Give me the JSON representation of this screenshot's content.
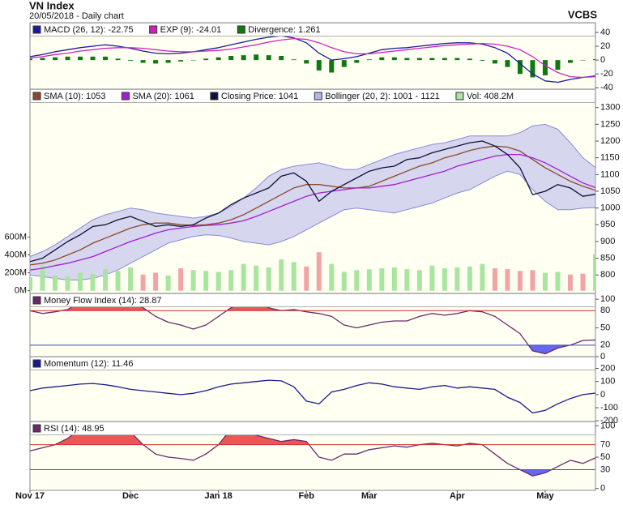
{
  "header": {
    "title": "VN Index",
    "subtitle": "20/05/2018 - Daily chart",
    "source": "VCBS"
  },
  "chart_data": [
    {
      "type": "line",
      "ylim": [
        -42,
        54
      ],
      "yticks": [
        40,
        20,
        0,
        -20,
        -40
      ],
      "series": [
        {
          "name": "MACD (26, 12): -22.75",
          "type": "line",
          "color": "#1a1aa0",
          "values": [
            5,
            8,
            12,
            15,
            18,
            20,
            22,
            20,
            17,
            13,
            10,
            9,
            10,
            12,
            15,
            18,
            22,
            26,
            30,
            33,
            35,
            32,
            25,
            10,
            0,
            2,
            5,
            10,
            15,
            17,
            18,
            20,
            22,
            24,
            25,
            25,
            23,
            18,
            10,
            -5,
            -20,
            -30,
            -32,
            -28,
            -25,
            -22.75
          ]
        },
        {
          "name": "EXP (9): -24.01",
          "type": "line",
          "color": "#d020c0",
          "values": [
            3,
            5,
            8,
            10,
            13,
            15,
            17,
            18,
            18,
            17,
            15,
            13,
            12,
            12,
            13,
            14,
            16,
            19,
            22,
            26,
            29,
            31,
            30,
            25,
            18,
            12,
            9,
            9,
            11,
            13,
            15,
            17,
            19,
            21,
            22,
            23,
            24,
            23,
            20,
            15,
            5,
            -8,
            -18,
            -24,
            -25,
            -24.01
          ]
        },
        {
          "name": "Divergence: 1.261",
          "type": "bar",
          "color": "#117711",
          "values": [
            2,
            3,
            4,
            5,
            5,
            5,
            5,
            2,
            -1,
            -4,
            -5,
            -4,
            -2,
            0,
            2,
            4,
            6,
            7,
            8,
            7,
            6,
            1,
            -5,
            -15,
            -18,
            -10,
            -4,
            1,
            4,
            4,
            3,
            3,
            3,
            3,
            3,
            2,
            -1,
            -5,
            -10,
            -20,
            -25,
            -22,
            -14,
            -4,
            0,
            1.261
          ]
        }
      ]
    },
    {
      "type": "line",
      "ylim": [
        745,
        1355
      ],
      "yticks": [
        800,
        850,
        900,
        950,
        1000,
        1050,
        1100,
        1150,
        1200,
        1250,
        1300
      ],
      "y2lim": [
        -30,
        2250
      ],
      "y2ticks": [
        {
          "value": 0,
          "label": "0M"
        },
        {
          "value": 200,
          "label": "200M"
        },
        {
          "value": 400,
          "label": "400M"
        },
        {
          "value": 600,
          "label": "600M"
        }
      ],
      "series": [
        {
          "name": "SMA (10): 1053",
          "type": "line",
          "color": "#8b4a2b",
          "values": [
            830,
            835,
            845,
            860,
            875,
            895,
            910,
            925,
            940,
            950,
            955,
            955,
            950,
            948,
            950,
            955,
            965,
            980,
            1000,
            1020,
            1040,
            1060,
            1070,
            1070,
            1065,
            1060,
            1060,
            1065,
            1080,
            1095,
            1110,
            1125,
            1135,
            1150,
            1160,
            1172,
            1180,
            1185,
            1182,
            1170,
            1145,
            1120,
            1100,
            1080,
            1065,
            1053
          ]
        },
        {
          "name": "SMA (20): 1061",
          "type": "line",
          "color": "#a020d0",
          "values": [
            815,
            820,
            828,
            835,
            845,
            855,
            870,
            885,
            900,
            912,
            925,
            935,
            940,
            945,
            948,
            950,
            955,
            962,
            975,
            990,
            1005,
            1020,
            1035,
            1045,
            1050,
            1055,
            1060,
            1060,
            1065,
            1070,
            1080,
            1090,
            1100,
            1110,
            1125,
            1135,
            1145,
            1155,
            1160,
            1160,
            1150,
            1135,
            1115,
            1095,
            1075,
            1061
          ]
        },
        {
          "name": "Closing Price: 1041",
          "type": "line",
          "color": "#10103a",
          "values": [
            840,
            850,
            875,
            900,
            920,
            945,
            950,
            965,
            975,
            960,
            945,
            950,
            945,
            950,
            970,
            985,
            1010,
            1030,
            1045,
            1060,
            1095,
            1105,
            1080,
            1020,
            1050,
            1070,
            1090,
            1110,
            1120,
            1125,
            1145,
            1150,
            1165,
            1175,
            1185,
            1195,
            1200,
            1185,
            1160,
            1120,
            1040,
            1050,
            1070,
            1060,
            1035,
            1041
          ]
        },
        {
          "name": "Bollinger (20, 2): 1001 - 1121",
          "type": "band",
          "color": "#b4b4ec",
          "upper": [
            855,
            870,
            890,
            915,
            940,
            965,
            980,
            990,
            1000,
            995,
            985,
            980,
            975,
            970,
            975,
            985,
            1005,
            1030,
            1060,
            1095,
            1115,
            1125,
            1130,
            1135,
            1125,
            1115,
            1115,
            1130,
            1145,
            1160,
            1170,
            1180,
            1190,
            1195,
            1205,
            1215,
            1215,
            1215,
            1215,
            1225,
            1245,
            1250,
            1235,
            1195,
            1150,
            1121
          ],
          "lower": [
            800,
            795,
            790,
            785,
            785,
            790,
            800,
            815,
            835,
            855,
            875,
            895,
            905,
            915,
            920,
            918,
            910,
            900,
            895,
            890,
            900,
            915,
            935,
            955,
            975,
            995,
            1000,
            995,
            990,
            985,
            995,
            1005,
            1015,
            1030,
            1045,
            1055,
            1075,
            1095,
            1110,
            1100,
            1055,
            1020,
            995,
            995,
            1000,
            1001
          ]
        },
        {
          "name": "Vol: 408.2M",
          "type": "bar",
          "axis": "y2",
          "color": "#a8e6a0",
          "down_color": "#f2a4a4",
          "values": [
            150,
            280,
            170,
            160,
            200,
            190,
            240,
            220,
            260,
            180,
            200,
            170,
            250,
            230,
            220,
            210,
            230,
            300,
            280,
            260,
            350,
            320,
            270,
            430,
            300,
            210,
            230,
            240,
            250,
            260,
            240,
            230,
            280,
            250,
            260,
            270,
            300,
            250,
            240,
            220,
            230,
            200,
            210,
            180,
            190,
            408.2
          ]
        }
      ]
    },
    {
      "type": "line",
      "ylim": [
        0,
        110
      ],
      "yticks": [
        100,
        50,
        0
      ],
      "upper_level": {
        "value": 80,
        "color": "#cc3333",
        "fill": "#ee5555"
      },
      "lower_level": {
        "value": 20,
        "color": "#4444cc",
        "fill": "#6666ee"
      },
      "series": [
        {
          "name": "Money Flow Index (14): 28.87",
          "type": "line",
          "color": "#6a2a6a",
          "values": [
            80,
            75,
            78,
            82,
            95,
            100,
            100,
            97,
            95,
            85,
            70,
            60,
            55,
            48,
            55,
            70,
            85,
            95,
            95,
            85,
            80,
            82,
            78,
            75,
            70,
            55,
            50,
            55,
            60,
            62,
            62,
            70,
            75,
            72,
            75,
            80,
            78,
            70,
            55,
            40,
            10,
            5,
            15,
            20,
            28,
            28.87
          ]
        }
      ]
    },
    {
      "type": "line",
      "ylim": [
        -205,
        290
      ],
      "yticks": [
        200,
        100,
        0,
        -100,
        -200
      ],
      "series": [
        {
          "name": "Momentum (12): 11.46",
          "type": "line",
          "color": "#1a1a90",
          "values": [
            30,
            50,
            60,
            70,
            80,
            85,
            75,
            60,
            40,
            30,
            20,
            10,
            0,
            10,
            30,
            60,
            80,
            90,
            100,
            110,
            105,
            60,
            -50,
            -70,
            20,
            40,
            70,
            90,
            80,
            60,
            50,
            40,
            60,
            70,
            50,
            60,
            50,
            40,
            -20,
            -60,
            -140,
            -120,
            -70,
            -30,
            0,
            11.46
          ]
        }
      ]
    },
    {
      "type": "line",
      "ylim": [
        -3,
        107
      ],
      "yticks": [
        100,
        50,
        0
      ],
      "upper_level": {
        "value": 70,
        "color": "#cc3333",
        "fill": "#ee5555"
      },
      "lower_level": {
        "value": 30,
        "color": "#4444cc",
        "fill": "#6666ee"
      },
      "categories": [
        "Nov 17",
        null,
        null,
        null,
        null,
        null,
        null,
        null,
        "Dec",
        null,
        null,
        null,
        null,
        null,
        null,
        "Jan 18",
        null,
        null,
        null,
        null,
        null,
        null,
        "Feb",
        null,
        null,
        null,
        null,
        "Mar",
        null,
        null,
        null,
        null,
        null,
        null,
        "Apr",
        null,
        null,
        null,
        null,
        null,
        null,
        "May",
        null,
        null,
        null,
        null
      ],
      "series": [
        {
          "name": "RSI (14): 48.95",
          "type": "line",
          "color": "#6a2a6a",
          "values": [
            60,
            65,
            70,
            80,
            95,
            100,
            100,
            100,
            90,
            70,
            55,
            50,
            48,
            45,
            55,
            70,
            95,
            95,
            85,
            80,
            75,
            78,
            75,
            50,
            45,
            55,
            55,
            62,
            65,
            68,
            66,
            70,
            72,
            70,
            68,
            72,
            70,
            55,
            40,
            30,
            20,
            25,
            35,
            45,
            40,
            48.95
          ]
        }
      ]
    }
  ]
}
